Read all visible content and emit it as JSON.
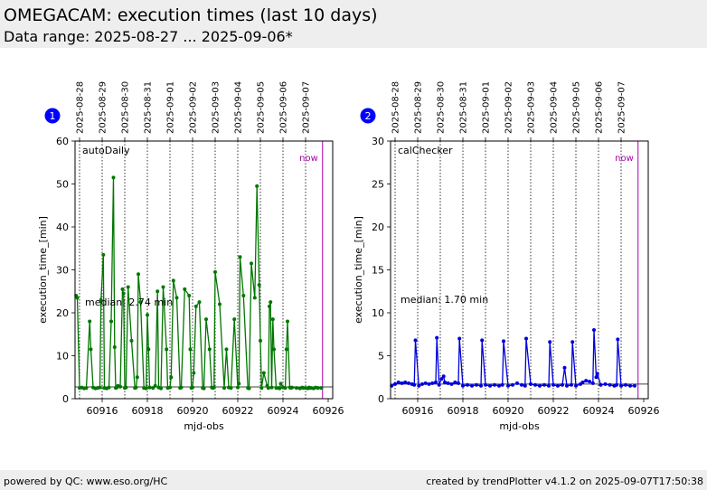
{
  "header": {
    "title": "OMEGACAM: execution times (last 10 days)",
    "subtitle": "Data range: 2025-08-27 ... 2025-09-06*"
  },
  "footer": {
    "left": "powered by QC: www.eso.org/HC",
    "right": "created by trendPlotter v4.1.2 on 2025-09-07T17:50:38"
  },
  "colors": {
    "series1": "#007700",
    "series2": "#0000dd",
    "now": "#aa00aa"
  },
  "chart_data": [
    {
      "type": "line",
      "panel_number": "1",
      "label": "autoDaily",
      "now_label": "now",
      "now_x": 60925.75,
      "median_label": "median: 2.74 min",
      "median": 2.74,
      "xlabel": "mjd-obs",
      "ylabel": "execution_time_[min]",
      "xlim": [
        60914.8,
        60926.2
      ],
      "ylim": [
        0,
        60
      ],
      "xticks": [
        60916,
        60918,
        60920,
        60922,
        60924,
        60926
      ],
      "yticks": [
        0,
        10,
        20,
        30,
        40,
        50,
        60
      ],
      "date_ticks": [
        {
          "mjd": 60915.0,
          "label": "2025-08-28"
        },
        {
          "mjd": 60916.0,
          "label": "2025-08-29"
        },
        {
          "mjd": 60917.0,
          "label": "2025-08-30"
        },
        {
          "mjd": 60918.0,
          "label": "2025-08-31"
        },
        {
          "mjd": 60919.0,
          "label": "2025-09-01"
        },
        {
          "mjd": 60920.0,
          "label": "2025-09-02"
        },
        {
          "mjd": 60921.0,
          "label": "2025-09-03"
        },
        {
          "mjd": 60922.0,
          "label": "2025-09-04"
        },
        {
          "mjd": 60923.0,
          "label": "2025-09-05"
        },
        {
          "mjd": 60924.0,
          "label": "2025-09-06"
        },
        {
          "mjd": 60925.0,
          "label": "2025-09-07"
        }
      ],
      "series": [
        {
          "x": [
            60914.85,
            60914.9,
            60915.0,
            60915.1,
            60915.2,
            60915.3,
            60915.45,
            60915.5,
            60915.6,
            60915.7,
            60915.8,
            60915.9,
            60915.95,
            60916.05,
            60916.1,
            60916.2,
            60916.3,
            60916.4,
            60916.5,
            60916.55,
            60916.6,
            60916.65,
            60916.7,
            60916.8,
            60916.9,
            60916.95,
            60917.0,
            60917.05,
            60917.15,
            60917.3,
            60917.45,
            60917.5,
            60917.55,
            60917.6,
            60917.7,
            60917.85,
            60917.95,
            60918.0,
            60918.05,
            60918.1,
            60918.25,
            60918.35,
            60918.45,
            60918.5,
            60918.6,
            60918.7,
            60918.85,
            60918.9,
            60919.0,
            60919.05,
            60919.15,
            60919.3,
            60919.45,
            60919.5,
            60919.65,
            60919.85,
            60919.9,
            60919.95,
            60920.0,
            60920.05,
            60920.15,
            60920.3,
            60920.45,
            60920.5,
            60920.6,
            60920.75,
            60920.85,
            60920.9,
            60920.95,
            60921.0,
            60921.2,
            60921.4,
            60921.5,
            60921.6,
            60921.7,
            60921.85,
            60922.0,
            60922.05,
            60922.1,
            60922.25,
            60922.45,
            60922.5,
            60922.6,
            60922.75,
            60922.85,
            60922.95,
            60923.0,
            60923.05,
            60923.15,
            60923.3,
            60923.35,
            60923.4,
            60923.45,
            60923.5,
            60923.55,
            60923.6,
            60923.7,
            60923.8,
            60923.85,
            60923.9,
            60924.0,
            60924.1,
            60924.15,
            60924.2,
            60924.3,
            60924.35,
            60924.4,
            60924.6,
            60924.75,
            60924.85,
            60924.9,
            60925.0,
            60925.1,
            60925.15,
            60925.2,
            60925.25,
            60925.35,
            60925.45,
            60925.55,
            60925.7
          ],
          "y": [
            24.0,
            23.5,
            2.5,
            2.6,
            2.4,
            2.5,
            18.0,
            11.5,
            2.6,
            2.4,
            2.5,
            2.6,
            23.0,
            33.5,
            2.5,
            2.4,
            2.6,
            18.0,
            51.5,
            12.0,
            2.5,
            2.6,
            3.0,
            2.8,
            25.5,
            24.5,
            2.5,
            2.6,
            26.0,
            13.5,
            2.5,
            2.6,
            5.0,
            29.0,
            22.5,
            2.5,
            2.4,
            19.5,
            11.5,
            2.6,
            2.5,
            3.0,
            25.0,
            2.6,
            2.4,
            26.0,
            11.5,
            2.5,
            2.6,
            5.0,
            27.5,
            23.5,
            2.5,
            2.6,
            25.5,
            24.0,
            11.5,
            2.5,
            2.6,
            6.0,
            21.5,
            22.5,
            2.5,
            2.4,
            18.5,
            11.5,
            2.6,
            2.5,
            2.6,
            29.5,
            22.0,
            2.5,
            11.5,
            2.6,
            2.5,
            18.5,
            2.6,
            3.5,
            33.0,
            24.0,
            2.5,
            2.4,
            31.5,
            23.5,
            49.5,
            26.5,
            13.5,
            2.5,
            6.0,
            3.0,
            2.5,
            21.5,
            22.5,
            2.6,
            18.5,
            11.5,
            2.5,
            2.5,
            2.4,
            3.5,
            2.6,
            2.5,
            11.5,
            18.0,
            2.6,
            2.5,
            2.6,
            2.5,
            2.4,
            2.6,
            2.5,
            2.5,
            2.4,
            2.6,
            2.5,
            2.5,
            2.4,
            2.6,
            2.5,
            2.5
          ]
        }
      ]
    },
    {
      "type": "line",
      "panel_number": "2",
      "label": "calChecker",
      "now_label": "now",
      "now_x": 60925.75,
      "median_label": "median: 1.70 min",
      "median": 1.7,
      "xlabel": "mjd-obs",
      "ylabel": "execution_time_[min]",
      "xlim": [
        60914.8,
        60926.2
      ],
      "ylim": [
        0,
        30
      ],
      "xticks": [
        60916,
        60918,
        60920,
        60922,
        60924,
        60926
      ],
      "yticks": [
        0,
        5,
        10,
        15,
        20,
        25,
        30
      ],
      "date_ticks": [
        {
          "mjd": 60915.0,
          "label": "2025-08-28"
        },
        {
          "mjd": 60916.0,
          "label": "2025-08-29"
        },
        {
          "mjd": 60917.0,
          "label": "2025-08-30"
        },
        {
          "mjd": 60918.0,
          "label": "2025-08-31"
        },
        {
          "mjd": 60919.0,
          "label": "2025-09-01"
        },
        {
          "mjd": 60920.0,
          "label": "2025-09-02"
        },
        {
          "mjd": 60921.0,
          "label": "2025-09-03"
        },
        {
          "mjd": 60922.0,
          "label": "2025-09-04"
        },
        {
          "mjd": 60923.0,
          "label": "2025-09-05"
        },
        {
          "mjd": 60924.0,
          "label": "2025-09-06"
        },
        {
          "mjd": 60925.0,
          "label": "2025-09-07"
        }
      ],
      "series": [
        {
          "x": [
            60914.85,
            60915.0,
            60915.15,
            60915.3,
            60915.45,
            60915.6,
            60915.75,
            60915.85,
            60915.9,
            60916.05,
            60916.2,
            60916.35,
            60916.5,
            60916.65,
            60916.8,
            60916.85,
            60916.95,
            60917.05,
            60917.15,
            60917.2,
            60917.35,
            60917.5,
            60917.65,
            60917.8,
            60917.85,
            60918.0,
            60918.2,
            60918.4,
            60918.6,
            60918.8,
            60918.85,
            60919.0,
            60919.2,
            60919.4,
            60919.6,
            60919.75,
            60919.8,
            60920.0,
            60920.2,
            60920.4,
            60920.6,
            60920.75,
            60920.8,
            60921.0,
            60921.2,
            60921.4,
            60921.6,
            60921.8,
            60921.85,
            60922.0,
            60922.2,
            60922.4,
            60922.5,
            60922.6,
            60922.8,
            60922.85,
            60923.0,
            60923.2,
            60923.3,
            60923.45,
            60923.6,
            60923.75,
            60923.8,
            60923.9,
            60923.95,
            60924.1,
            60924.3,
            60924.5,
            60924.7,
            60924.8,
            60924.85,
            60925.0,
            60925.2,
            60925.4,
            60925.6
          ],
          "y": [
            1.5,
            1.7,
            1.9,
            1.8,
            1.9,
            1.8,
            1.7,
            1.6,
            6.8,
            1.5,
            1.7,
            1.8,
            1.7,
            1.8,
            1.9,
            7.1,
            1.6,
            2.3,
            2.6,
            1.9,
            1.8,
            1.7,
            1.9,
            1.8,
            7.0,
            1.5,
            1.6,
            1.5,
            1.6,
            1.5,
            6.8,
            1.6,
            1.5,
            1.6,
            1.5,
            1.6,
            6.7,
            1.5,
            1.6,
            1.8,
            1.6,
            1.5,
            7.0,
            1.7,
            1.6,
            1.5,
            1.6,
            1.5,
            6.6,
            1.6,
            1.5,
            1.6,
            3.6,
            1.5,
            1.6,
            6.6,
            1.5,
            1.7,
            1.9,
            2.1,
            2.0,
            1.8,
            8.0,
            2.5,
            2.9,
            1.6,
            1.7,
            1.6,
            1.5,
            1.6,
            6.9,
            1.5,
            1.6,
            1.5,
            1.5
          ]
        }
      ]
    }
  ]
}
